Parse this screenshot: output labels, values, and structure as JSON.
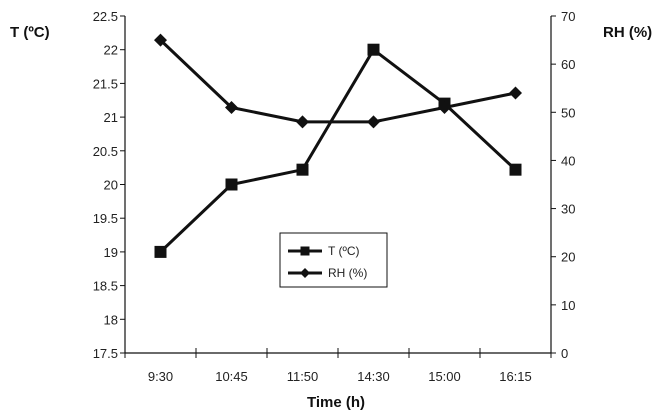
{
  "chart_data": {
    "type": "line",
    "title": "",
    "xlabel": "Time (h)",
    "ylabel_left": "T (ºC)",
    "ylabel_right": "RH (%)",
    "categories": [
      "9:30",
      "10:45",
      "11:50",
      "14:30",
      "15:00",
      "16:15"
    ],
    "y_left": {
      "lim": [
        17.5,
        22.5
      ],
      "ticks": [
        17.5,
        18,
        18.5,
        19,
        19.5,
        20,
        20.5,
        21,
        21.5,
        22,
        22.5
      ],
      "tick_labels": [
        "17.5",
        "18",
        "18.5",
        "19",
        "19.5",
        "20",
        "20.5",
        "21",
        "21.5",
        "22",
        "22.5"
      ]
    },
    "y_right": {
      "lim": [
        0,
        70
      ],
      "ticks": [
        0,
        10,
        20,
        30,
        40,
        50,
        60,
        70
      ],
      "tick_labels": [
        "0",
        "10",
        "20",
        "30",
        "40",
        "50",
        "60",
        "70"
      ]
    },
    "grid": false,
    "legend_position": "center",
    "series": [
      {
        "name": "T (ºC)",
        "axis": "left",
        "marker": "square",
        "color": "#111111",
        "values": [
          19.0,
          20.0,
          20.22,
          22.0,
          21.2,
          20.22
        ]
      },
      {
        "name": "RH (%)",
        "axis": "right",
        "marker": "diamond",
        "color": "#111111",
        "values": [
          65,
          51,
          48,
          48,
          51,
          54
        ]
      }
    ]
  }
}
